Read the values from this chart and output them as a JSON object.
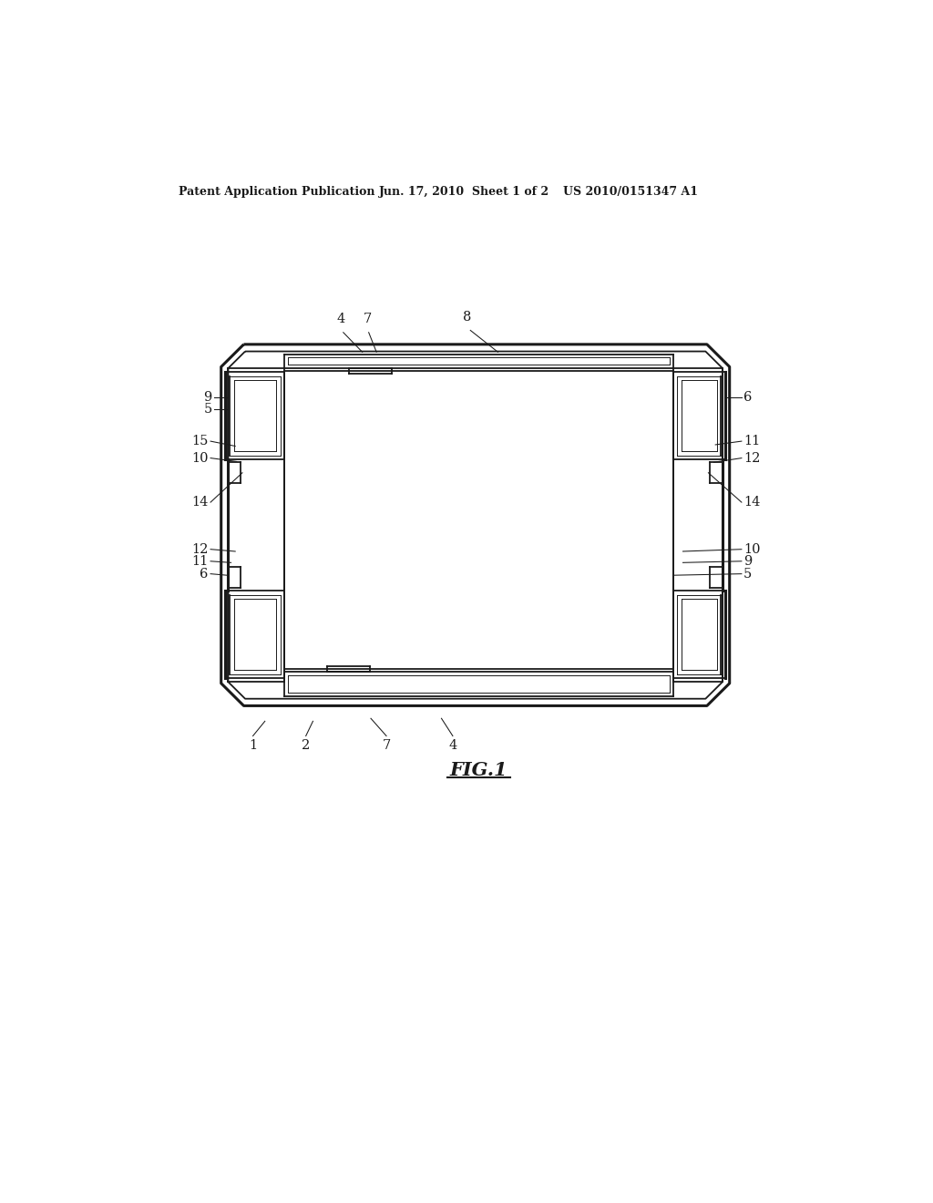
{
  "bg_color": "#ffffff",
  "header_left": "Patent Application Publication",
  "header_mid": "Jun. 17, 2010  Sheet 1 of 2",
  "header_right": "US 2010/0151347 A1",
  "lc": "#1a1a1a",
  "lw_thick": 2.2,
  "lw_med": 1.3,
  "lw_thin": 0.7,
  "lw_leader": 0.75,
  "fs_label": 10.5,
  "fs_header": 9.0,
  "fs_fig": 15,
  "diagram": {
    "ox1": 148,
    "oy1": 285,
    "ox2": 868,
    "oy2": 800,
    "cut": 32,
    "ix1": 238,
    "iy1": 323,
    "ix2": 788,
    "iy2": 748
  }
}
